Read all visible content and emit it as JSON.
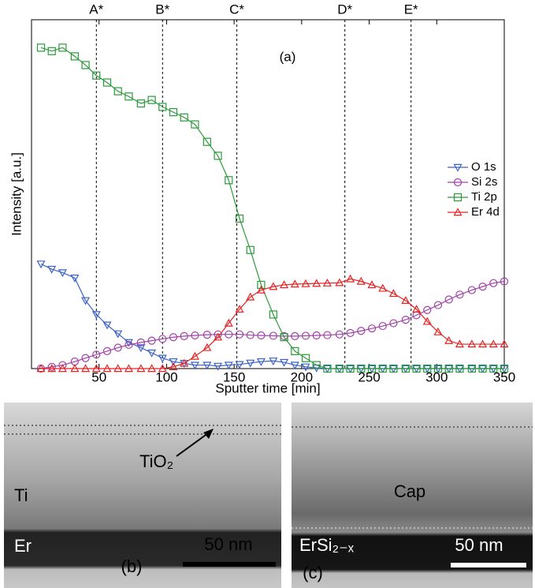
{
  "chart_data": {
    "type": "line",
    "panel_label": "(a)",
    "xlabel": "Sputter time [min]",
    "ylabel": "Intensity [a.u.]",
    "xlim": [
      0,
      350
    ],
    "xticks": [
      50,
      100,
      150,
      200,
      250,
      300,
      350
    ],
    "ylim": [
      0,
      100
    ],
    "legend": "right",
    "x": [
      7,
      15,
      23,
      32,
      40,
      48,
      56,
      64,
      72,
      81,
      89,
      97,
      105,
      113,
      121,
      130,
      138,
      146,
      154,
      162,
      170,
      179,
      187,
      195,
      203,
      211,
      219,
      228,
      236,
      244,
      252,
      260,
      268,
      277,
      285,
      293,
      301,
      309,
      317,
      326,
      334,
      342,
      350
    ],
    "vlines": [
      {
        "x": 48,
        "label": "A*"
      },
      {
        "x": 97,
        "label": "B*"
      },
      {
        "x": 152,
        "label": "C*"
      },
      {
        "x": 232,
        "label": "D*"
      },
      {
        "x": 281,
        "label": "E*"
      }
    ],
    "series": [
      {
        "name": "O 1s",
        "color": "#3a62c8",
        "marker": "tri-down",
        "values": [
          30,
          28.5,
          27.5,
          26,
          19.5,
          15.5,
          12.5,
          10,
          7.5,
          6,
          4.5,
          3,
          2,
          1.5,
          1,
          1,
          0.7,
          1,
          1.2,
          1.6,
          2,
          2.2,
          1.8,
          1,
          0.5,
          0.2,
          0,
          0,
          0,
          0,
          0,
          0,
          0,
          0,
          0,
          0,
          0,
          0,
          0,
          0,
          0,
          0,
          0
        ]
      },
      {
        "name": "Si 2s",
        "color": "#a040a8",
        "marker": "circle",
        "values": [
          0,
          0.5,
          1,
          2,
          3,
          4,
          5,
          6,
          6.8,
          7.5,
          8,
          8.5,
          9,
          9.3,
          9.5,
          9.7,
          9.8,
          9.8,
          9.8,
          9.6,
          9.5,
          9.4,
          9.3,
          9.3,
          9.4,
          9.5,
          9.6,
          9.8,
          10.2,
          10.8,
          11.5,
          12.2,
          13,
          14,
          15.3,
          16.8,
          18.2,
          19.8,
          21.2,
          22.5,
          23.5,
          24.5,
          25
        ]
      },
      {
        "name": "Ti 2p",
        "color": "#2a9a3a",
        "marker": "square",
        "values": [
          92,
          91,
          92,
          89.5,
          87,
          84,
          82,
          79.5,
          78,
          76,
          77,
          75,
          73.5,
          72,
          70,
          65,
          61,
          54,
          43,
          34,
          24,
          15.5,
          9,
          5,
          3,
          1,
          0,
          0,
          0,
          0,
          0,
          0,
          0,
          0,
          0,
          0,
          0,
          0,
          0,
          0,
          0,
          0,
          0
        ]
      },
      {
        "name": "Er 4d",
        "color": "#e52222",
        "marker": "tri-up",
        "values": [
          0,
          0,
          0,
          0,
          0,
          0,
          0,
          0,
          0,
          0,
          0,
          0,
          0.5,
          1.5,
          3.5,
          6,
          9,
          13,
          17,
          20.5,
          22.5,
          23.5,
          24,
          24.2,
          24.3,
          24.4,
          24.5,
          24.6,
          25.7,
          25,
          24,
          23,
          21.5,
          19.5,
          17,
          13.5,
          10.5,
          8,
          7,
          7,
          7,
          7,
          7
        ]
      }
    ]
  },
  "images": {
    "b": {
      "label": "(b)",
      "top_layer": "Ti",
      "oxide": "TiO₂",
      "bottom_layer": "Er",
      "scale": "50 nm"
    },
    "c": {
      "label": "(c)",
      "top_layer": "Cap",
      "bottom_layer": "ErSi₂₋ₓ",
      "scale": "50 nm"
    }
  }
}
